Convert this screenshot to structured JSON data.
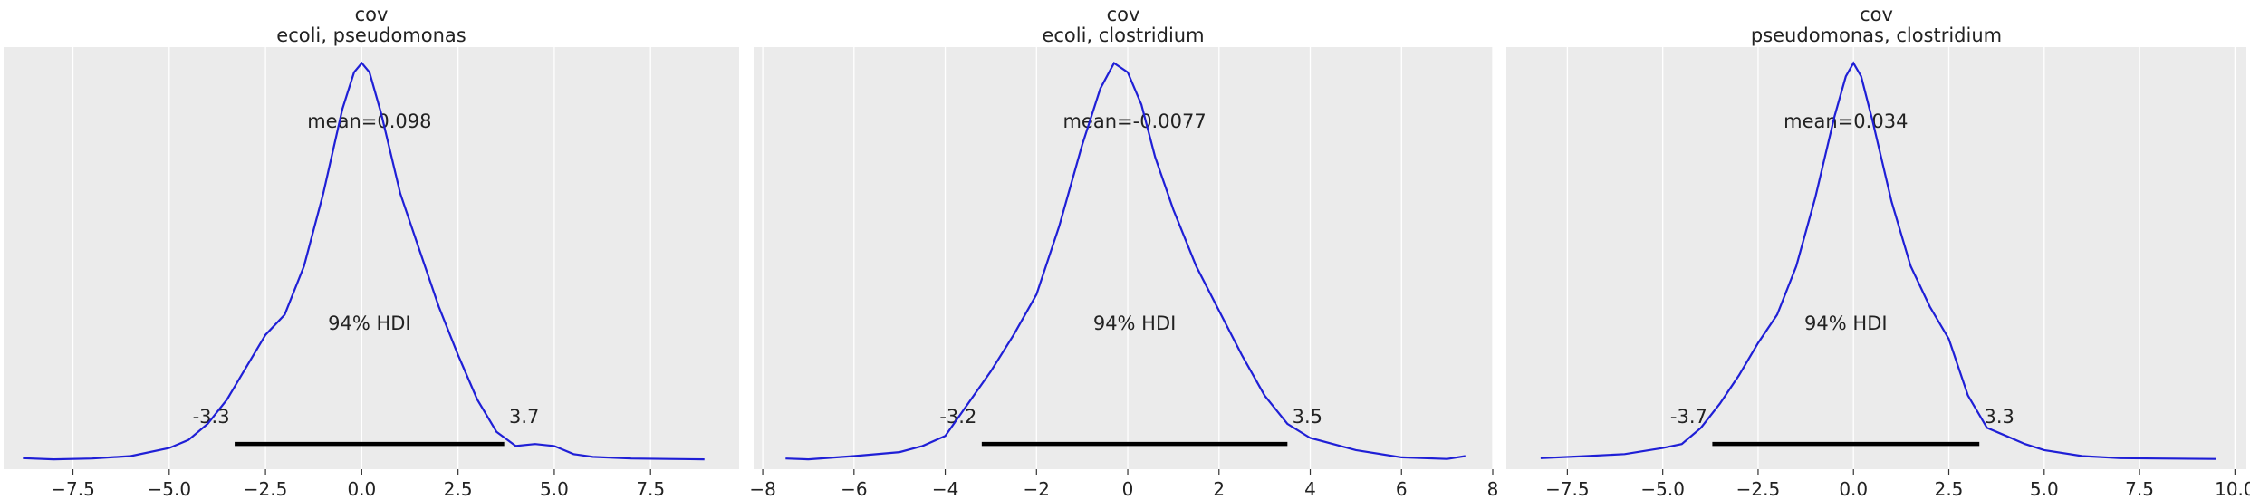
{
  "figure": {
    "background": "#ffffff",
    "panel_background": "#ebebeb",
    "grid_color": "#ffffff",
    "curve_color": "#1f1fd6",
    "hdi_color": "#000000"
  },
  "chart_data": [
    {
      "type": "line",
      "title": "cov",
      "subtitle": "ecoli, pseudomonas",
      "xlabel": "",
      "ylabel": "",
      "xlim": [
        -9.3,
        9.8
      ],
      "ylim": [
        0,
        1.0
      ],
      "grid": "vertical",
      "xticks": [
        -7.5,
        -5.0,
        -2.5,
        0.0,
        2.5,
        5.0,
        7.5
      ],
      "xtick_labels": [
        "−7.5",
        "−5.0",
        "−2.5",
        "0.0",
        "2.5",
        "5.0",
        "7.5"
      ],
      "mean_label": "mean=0.098",
      "hdi_label": "94% HDI",
      "hdi": [
        -3.3,
        3.7
      ],
      "hdi_low_label": "-3.3",
      "hdi_high_label": "3.7",
      "series": [
        {
          "x": [
            -8.8,
            -8.0,
            -7.0,
            -6.0,
            -5.0,
            -4.5,
            -4.0,
            -3.5,
            -3.0,
            -2.5,
            -2.0,
            -1.5,
            -1.0,
            -0.5,
            -0.2,
            0.0,
            0.2,
            0.5,
            1.0,
            1.5,
            2.0,
            2.5,
            3.0,
            3.5,
            4.0,
            4.5,
            5.0,
            5.5,
            6.0,
            7.0,
            8.0,
            8.9
          ],
          "y": [
            0.005,
            0.002,
            0.004,
            0.01,
            0.03,
            0.05,
            0.09,
            0.15,
            0.23,
            0.31,
            0.36,
            0.48,
            0.66,
            0.87,
            0.96,
            0.983,
            0.96,
            0.86,
            0.66,
            0.52,
            0.38,
            0.26,
            0.15,
            0.07,
            0.035,
            0.04,
            0.035,
            0.015,
            0.008,
            0.004,
            0.003,
            0.002
          ]
        }
      ]
    },
    {
      "type": "line",
      "title": "cov",
      "subtitle": "ecoli, clostridium",
      "xlabel": "",
      "ylabel": "",
      "xlim": [
        -8.2,
        8.0
      ],
      "ylim": [
        0,
        1.0
      ],
      "grid": "vertical",
      "xticks": [
        -8,
        -6,
        -4,
        -2,
        0,
        2,
        4,
        6,
        8
      ],
      "xtick_labels": [
        "−8",
        "−6",
        "−4",
        "−2",
        "0",
        "2",
        "4",
        "6",
        "8"
      ],
      "mean_label": "mean=-0.0077",
      "hdi_label": "94% HDI",
      "hdi": [
        -3.2,
        3.5
      ],
      "hdi_low_label": "-3.2",
      "hdi_high_label": "3.5",
      "series": [
        {
          "x": [
            -7.5,
            -7.0,
            -6.0,
            -5.0,
            -4.5,
            -4.0,
            -3.5,
            -3.0,
            -2.5,
            -2.0,
            -1.5,
            -1.0,
            -0.6,
            -0.3,
            0.0,
            0.3,
            0.6,
            1.0,
            1.5,
            2.0,
            2.5,
            3.0,
            3.5,
            4.0,
            5.0,
            6.0,
            7.0,
            7.4
          ],
          "y": [
            0.004,
            0.002,
            0.01,
            0.02,
            0.035,
            0.06,
            0.14,
            0.22,
            0.31,
            0.41,
            0.58,
            0.78,
            0.92,
            0.983,
            0.96,
            0.88,
            0.75,
            0.62,
            0.48,
            0.37,
            0.26,
            0.16,
            0.09,
            0.055,
            0.025,
            0.007,
            0.003,
            0.01
          ]
        }
      ]
    },
    {
      "type": "line",
      "title": "cov",
      "subtitle": "pseudomonas, clostridium",
      "xlabel": "",
      "ylabel": "",
      "xlim": [
        -9.1,
        10.3
      ],
      "ylim": [
        0,
        1.0
      ],
      "grid": "vertical",
      "xticks": [
        -7.5,
        -5.0,
        -2.5,
        0.0,
        2.5,
        5.0,
        7.5,
        10.0
      ],
      "xtick_labels": [
        "−7.5",
        "−5.0",
        "−2.5",
        "0.0",
        "2.5",
        "5.0",
        "7.5",
        "10.0"
      ],
      "mean_label": "mean=0.034",
      "hdi_label": "94% HDI",
      "hdi": [
        -3.7,
        3.3
      ],
      "hdi_low_label": "-3.7",
      "hdi_high_label": "3.3",
      "series": [
        {
          "x": [
            -8.2,
            -7.0,
            -6.0,
            -5.0,
            -4.5,
            -4.0,
            -3.5,
            -3.0,
            -2.5,
            -2.0,
            -1.5,
            -1.0,
            -0.5,
            -0.2,
            0.0,
            0.2,
            0.5,
            1.0,
            1.5,
            2.0,
            2.5,
            3.0,
            3.5,
            4.0,
            4.5,
            5.0,
            6.0,
            7.0,
            8.0,
            9.5
          ],
          "y": [
            0.005,
            0.01,
            0.015,
            0.03,
            0.04,
            0.08,
            0.14,
            0.21,
            0.29,
            0.36,
            0.48,
            0.65,
            0.85,
            0.95,
            0.983,
            0.95,
            0.84,
            0.64,
            0.48,
            0.38,
            0.3,
            0.16,
            0.08,
            0.06,
            0.04,
            0.025,
            0.01,
            0.005,
            0.004,
            0.003
          ]
        }
      ]
    }
  ]
}
